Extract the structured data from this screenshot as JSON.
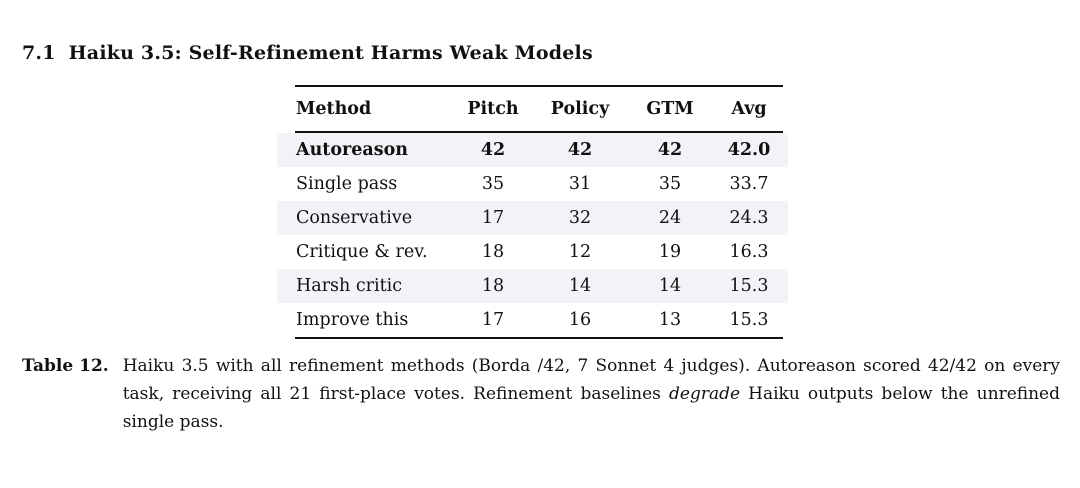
{
  "heading": {
    "number": "7.1",
    "title": "Haiku 3.5: Self-Refinement Harms Weak Models"
  },
  "table": {
    "stripe_color": "#f2f2f7",
    "columns": [
      "Method",
      "Pitch",
      "Policy",
      "GTM",
      "Avg"
    ],
    "rows": [
      {
        "cells": [
          "Autoreason",
          "42",
          "42",
          "42",
          "42.0"
        ],
        "emphasis": "bold",
        "shaded": true
      },
      {
        "cells": [
          "Single pass",
          "35",
          "31",
          "35",
          "33.7"
        ],
        "emphasis": "none",
        "shaded": false
      },
      {
        "cells": [
          "Conservative",
          "17",
          "32",
          "24",
          "24.3"
        ],
        "emphasis": "none",
        "shaded": true
      },
      {
        "cells": [
          "Critique & rev.",
          "18",
          "12",
          "19",
          "16.3"
        ],
        "emphasis": "none",
        "shaded": false
      },
      {
        "cells": [
          "Harsh critic",
          "18",
          "14",
          "14",
          "15.3"
        ],
        "emphasis": "none",
        "shaded": true
      },
      {
        "cells": [
          "Improve this",
          "17",
          "16",
          "13",
          "15.3"
        ],
        "emphasis": "none",
        "shaded": false
      }
    ]
  },
  "caption": {
    "label": "Table 12.",
    "text_before": "Haiku 3.5 with all refinement methods (Borda /42, 7 Sonnet 4 judges). Autoreason scored 42/42 on every task, receiving all 21 first-place votes. Refinement baselines ",
    "italic_word": "degrade",
    "text_after": " Haiku outputs below the unrefined single pass."
  }
}
